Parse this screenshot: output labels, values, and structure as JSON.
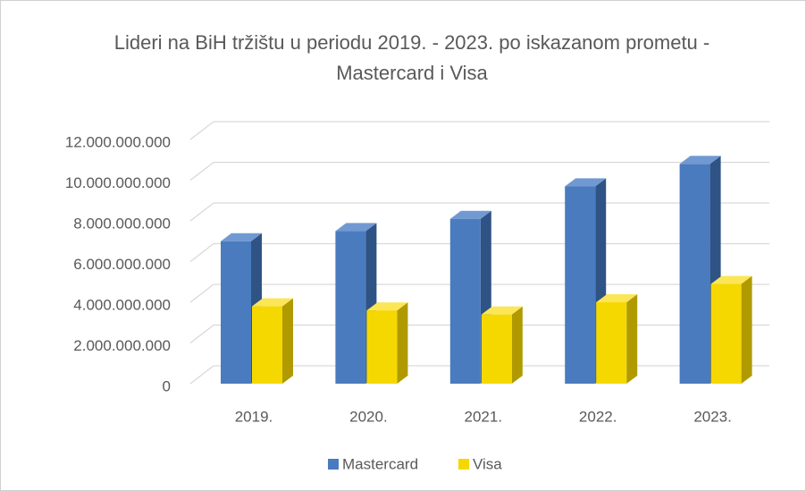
{
  "chart_data": {
    "type": "bar3d",
    "title": "Lideri na BiH tržištu u periodu 2019. - 2023. po iskazanom prometu - Mastercard i Visa",
    "categories": [
      "2019.",
      "2020.",
      "2021.",
      "2022.",
      "2023."
    ],
    "series": [
      {
        "name": "Mastercard",
        "color": "#4a7bbf",
        "side": "#2f5384",
        "top": "#7199d1",
        "values": [
          7000000000,
          7500000000,
          8100000000,
          9700000000,
          10800000000
        ]
      },
      {
        "name": "Visa",
        "color": "#f5d800",
        "side": "#b09a00",
        "top": "#fbe658",
        "values": [
          3800000000,
          3600000000,
          3400000000,
          4000000000,
          4900000000
        ]
      }
    ],
    "ylim": [
      0,
      12000000000
    ],
    "yticks": [
      0,
      {
        "value": 2000000000,
        "label": "2.000.000.000"
      },
      {
        "value": 4000000000,
        "label": "4.000.000.000"
      },
      {
        "value": 6000000000,
        "label": "6.000.000.000"
      },
      {
        "value": 8000000000,
        "label": "8.000.000.000"
      },
      {
        "value": 10000000000,
        "label": "10.000.000.000"
      },
      {
        "value": 12000000000,
        "label": "12.000.000.000"
      }
    ],
    "grid": true,
    "legend": "bottom"
  }
}
